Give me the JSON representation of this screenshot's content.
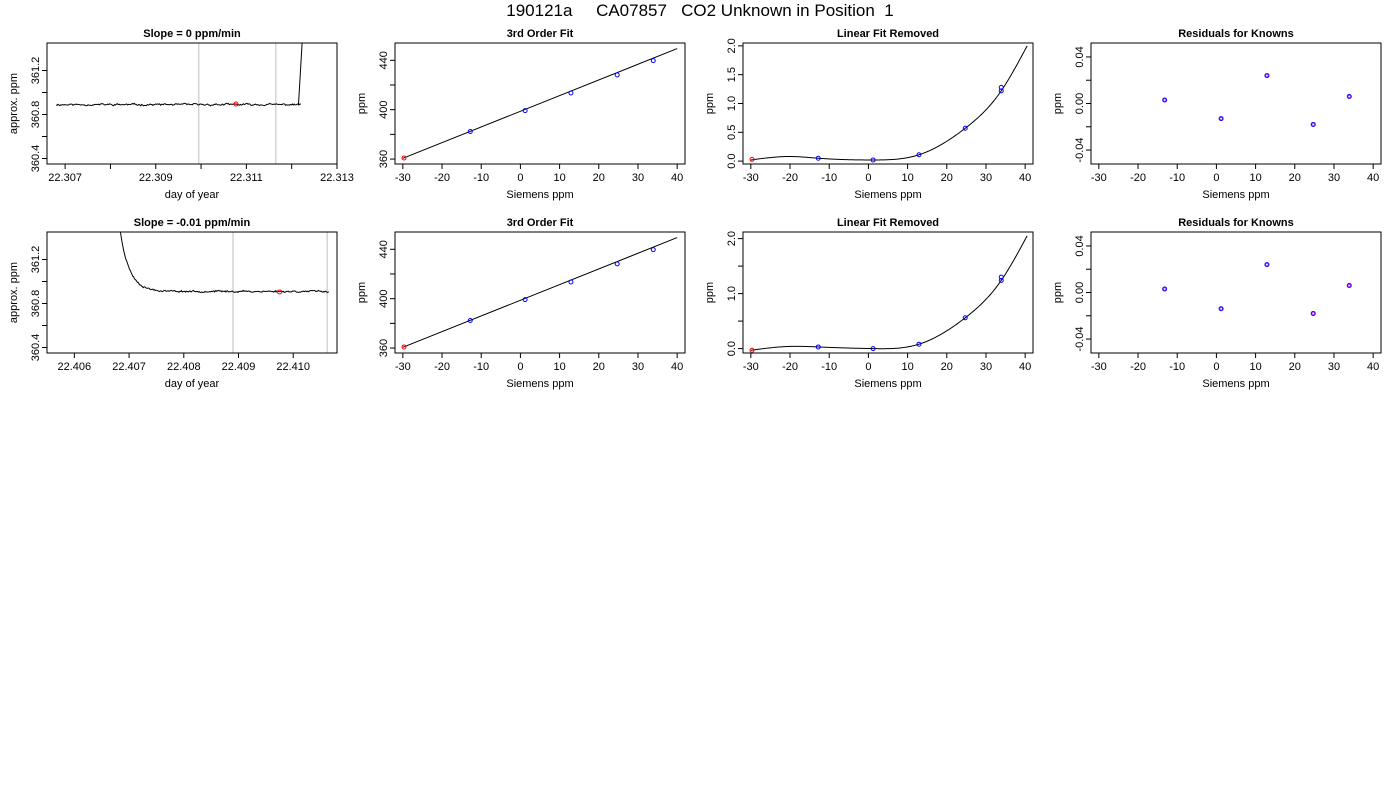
{
  "page_title": "190121a     CA07857   CO2 Unknown in Position  1",
  "colors": {
    "known": "#0000ff",
    "unknown": "#ff0000",
    "trace": "#000000",
    "vline": "#bebebe"
  },
  "chart_data": [
    {
      "id": "p1",
      "type": "line",
      "title": "Slope =  0  ppm/min",
      "xlabel": "day of year",
      "ylabel": "approx. ppm",
      "xlim": [
        22.3066,
        22.313
      ],
      "ylim": [
        360.35,
        361.45
      ],
      "xticks": [
        22.307,
        22.308,
        22.309,
        22.31,
        22.311,
        22.312,
        22.313
      ],
      "xtick_labels": [
        "22.307",
        "",
        "22.309",
        "",
        "22.311",
        "",
        "22.313"
      ],
      "yticks": [
        360.4,
        360.6,
        360.8,
        361.0,
        361.2
      ],
      "ytick_labels": [
        "360.4",
        "",
        "360.8",
        "",
        "361.2"
      ],
      "series": [
        {
          "trace": {
            "start": 22.3068,
            "end": 22.3122,
            "level": 360.89,
            "noise": 0.012,
            "rise_start": 22.31215,
            "rise_level": 361.45,
            "seed": 11
          }
        }
      ],
      "vlines": [
        22.30995,
        22.31165
      ],
      "unknown_points": [
        {
          "x": 22.31077,
          "y": 360.895
        }
      ]
    },
    {
      "id": "p2",
      "type": "scatter",
      "title": "3rd Order Fit",
      "xlabel": "Siemens ppm",
      "ylabel": "ppm",
      "xlim": [
        -32,
        42
      ],
      "ylim": [
        356,
        454
      ],
      "xticks": [
        -30,
        -20,
        -10,
        0,
        10,
        20,
        30,
        40
      ],
      "yticks": [
        360,
        380,
        400,
        420,
        440
      ],
      "ytick_labels": [
        "360",
        "",
        "400",
        "",
        "440"
      ],
      "fit_line": {
        "x": [
          -30,
          40
        ],
        "y": [
          360.6,
          449.5
        ]
      },
      "known_points": [
        {
          "x": -12.8,
          "y": 382.3
        },
        {
          "x": 1.2,
          "y": 399.2
        },
        {
          "x": 12.9,
          "y": 413.5
        },
        {
          "x": 24.7,
          "y": 428.2
        },
        {
          "x": 33.9,
          "y": 439.7
        }
      ],
      "unknown_points": [
        {
          "x": -29.7,
          "y": 360.9
        }
      ]
    },
    {
      "id": "p3",
      "type": "scatter",
      "title": "Linear Fit Removed",
      "xlabel": "Siemens ppm",
      "ylabel": "ppm",
      "xlim": [
        -32,
        42
      ],
      "ylim": [
        -0.05,
        2.05
      ],
      "xticks": [
        -30,
        -20,
        -10,
        0,
        10,
        20,
        30,
        40
      ],
      "yticks": [
        0.0,
        0.5,
        1.0,
        1.5,
        2.0
      ],
      "ytick_labels": [
        "0.0",
        "0.5",
        "1.0",
        "1.5",
        "2.0"
      ],
      "fit_curve": {
        "knots_x": [
          -30,
          -20,
          -12.8,
          1.2,
          12.9,
          24.7,
          33.9,
          40.5
        ],
        "knots_y": [
          0.02,
          0.08,
          0.05,
          0.02,
          0.11,
          0.57,
          1.22,
          2.0
        ]
      },
      "known_points": [
        {
          "x": -12.8,
          "y": 0.05
        },
        {
          "x": 1.2,
          "y": 0.02
        },
        {
          "x": 12.9,
          "y": 0.11
        },
        {
          "x": 24.7,
          "y": 0.57
        },
        {
          "x": 33.9,
          "y": 1.22
        },
        {
          "x": 33.9,
          "y": 1.28
        }
      ],
      "unknown_points": [
        {
          "x": -29.7,
          "y": 0.03
        }
      ]
    },
    {
      "id": "p4",
      "type": "scatter",
      "title": "Residuals for Knowns",
      "xlabel": "Siemens ppm",
      "ylabel": "ppm",
      "xlim": [
        -32,
        42
      ],
      "ylim": [
        -0.052,
        0.052
      ],
      "xticks": [
        -30,
        -20,
        -10,
        0,
        10,
        20,
        30,
        40
      ],
      "yticks": [
        -0.04,
        -0.02,
        0.0,
        0.02,
        0.04
      ],
      "ytick_labels": [
        "-0.04",
        "",
        "0.00",
        "",
        "0.04"
      ],
      "known_points": [
        {
          "x": -13.2,
          "y": 0.003
        },
        {
          "x": 1.2,
          "y": -0.013
        },
        {
          "x": 12.9,
          "y": 0.024
        },
        {
          "x": 24.7,
          "y": -0.018
        },
        {
          "x": 33.9,
          "y": 0.006
        }
      ]
    },
    {
      "id": "p5",
      "type": "line",
      "title": "Slope =  -0.01  ppm/min",
      "xlabel": "day of year",
      "ylabel": "approx. ppm",
      "xlim": [
        22.4055,
        22.4108
      ],
      "ylim": [
        360.35,
        361.45
      ],
      "xticks": [
        22.406,
        22.407,
        22.408,
        22.409,
        22.41
      ],
      "xtick_labels": [
        "22.406",
        "22.407",
        "22.408",
        "22.409",
        "22.410"
      ],
      "yticks": [
        360.4,
        360.6,
        360.8,
        361.0,
        361.2
      ],
      "ytick_labels": [
        "360.4",
        "",
        "360.8",
        "",
        "361.2"
      ],
      "series": [
        {
          "trace": {
            "start": 22.4068,
            "end": 22.41065,
            "level": 360.91,
            "noise": 0.011,
            "decay_from": 361.6,
            "decay_tau": 0.00017,
            "seed": 23
          }
        }
      ],
      "vlines": [
        22.4089,
        22.41062
      ],
      "unknown_points": [
        {
          "x": 22.40975,
          "y": 360.905
        }
      ]
    },
    {
      "id": "p6",
      "type": "scatter",
      "title": "3rd Order Fit",
      "xlabel": "Siemens ppm",
      "ylabel": "ppm",
      "xlim": [
        -32,
        42
      ],
      "ylim": [
        356,
        454
      ],
      "xticks": [
        -30,
        -20,
        -10,
        0,
        10,
        20,
        30,
        40
      ],
      "yticks": [
        360,
        380,
        400,
        420,
        440
      ],
      "ytick_labels": [
        "360",
        "",
        "400",
        "",
        "440"
      ],
      "fit_line": {
        "x": [
          -30,
          40
        ],
        "y": [
          360.6,
          449.5
        ]
      },
      "known_points": [
        {
          "x": -12.8,
          "y": 382.3
        },
        {
          "x": 1.2,
          "y": 399.2
        },
        {
          "x": 12.9,
          "y": 413.5
        },
        {
          "x": 24.7,
          "y": 428.2
        },
        {
          "x": 33.9,
          "y": 439.7
        }
      ],
      "unknown_points": [
        {
          "x": -29.7,
          "y": 360.9
        }
      ]
    },
    {
      "id": "p7",
      "type": "scatter",
      "title": "Linear Fit Removed",
      "xlabel": "Siemens ppm",
      "ylabel": "ppm",
      "xlim": [
        -32,
        42
      ],
      "ylim": [
        -0.08,
        2.12
      ],
      "xticks": [
        -30,
        -20,
        -10,
        0,
        10,
        20,
        30,
        40
      ],
      "yticks": [
        0.0,
        0.5,
        1.0,
        1.5,
        2.0
      ],
      "ytick_labels": [
        "0.0",
        "",
        "1.0",
        "",
        "2.0"
      ],
      "fit_curve": {
        "knots_x": [
          -30,
          -20,
          -12.8,
          1.2,
          12.9,
          24.7,
          33.9,
          40.5
        ],
        "knots_y": [
          -0.03,
          0.04,
          0.03,
          0.0,
          0.08,
          0.56,
          1.24,
          2.05
        ]
      },
      "known_points": [
        {
          "x": -12.8,
          "y": 0.03
        },
        {
          "x": 1.2,
          "y": 0.0
        },
        {
          "x": 12.9,
          "y": 0.08
        },
        {
          "x": 24.7,
          "y": 0.56
        },
        {
          "x": 33.9,
          "y": 1.24
        },
        {
          "x": 33.9,
          "y": 1.3
        }
      ],
      "unknown_points": [
        {
          "x": -29.7,
          "y": -0.03
        }
      ]
    },
    {
      "id": "p8",
      "type": "scatter",
      "title": "Residuals for Knowns",
      "xlabel": "Siemens ppm",
      "ylabel": "ppm",
      "xlim": [
        -32,
        42
      ],
      "ylim": [
        -0.052,
        0.052
      ],
      "xticks": [
        -30,
        -20,
        -10,
        0,
        10,
        20,
        30,
        40
      ],
      "yticks": [
        -0.04,
        -0.02,
        0.0,
        0.02,
        0.04
      ],
      "ytick_labels": [
        "-0.04",
        "",
        "0.00",
        "",
        "0.04"
      ],
      "known_points": [
        {
          "x": -13.2,
          "y": 0.003
        },
        {
          "x": 1.2,
          "y": -0.014
        },
        {
          "x": 12.9,
          "y": 0.024
        },
        {
          "x": 24.7,
          "y": -0.018
        },
        {
          "x": 33.9,
          "y": 0.006
        }
      ]
    }
  ]
}
